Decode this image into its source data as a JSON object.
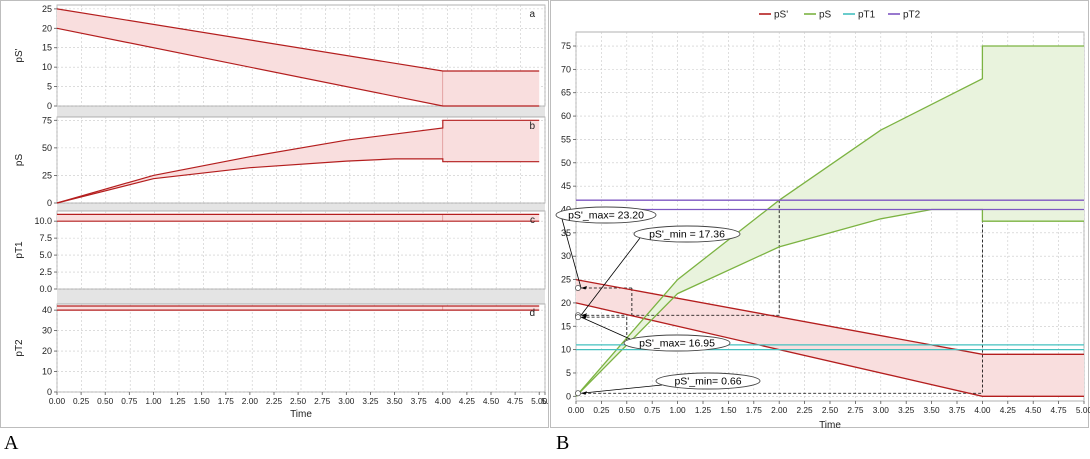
{
  "panel_labels": {
    "a": "A",
    "b": "B"
  },
  "colors": {
    "red": "#b41e1e",
    "pink_fill": "#f9dede",
    "green": "#7cb342",
    "green_fill": "#e9f3dd",
    "cyan": "#45c0bf",
    "purple": "#7e57c2",
    "grid": "#c8c8c8",
    "gap": "#e4e4e4"
  },
  "chart_data": [
    {
      "type": "area",
      "panel": "A",
      "xlabel": "Time",
      "x_ticks": [
        "0.00",
        "0.25",
        "0.50",
        "0.75",
        "1.00",
        "1.25",
        "1.50",
        "1.75",
        "2.00",
        "2.25",
        "2.50",
        "2.75",
        "3.00",
        "3.25",
        "3.50",
        "3.75",
        "4.00",
        "4.25",
        "4.50",
        "4.75",
        "5.00",
        "5."
      ],
      "xlim": [
        0,
        5.06
      ],
      "subplots": [
        {
          "tag": "a",
          "ylabel": "pS'",
          "ylim": [
            0,
            26
          ],
          "y_ticks": [
            0,
            5,
            10,
            15,
            20,
            25
          ],
          "upper": [
            [
              0,
              25
            ],
            [
              4,
              9
            ],
            [
              5,
              9
            ]
          ],
          "lower": [
            [
              0,
              20
            ],
            [
              4,
              0
            ],
            [
              5,
              0
            ]
          ]
        },
        {
          "tag": "b",
          "ylabel": "pS",
          "ylim": [
            0,
            78
          ],
          "y_ticks": [
            0,
            25,
            50,
            75
          ],
          "upper": [
            [
              0,
              0
            ],
            [
              1,
              25
            ],
            [
              2,
              42
            ],
            [
              3,
              57
            ],
            [
              4,
              68
            ],
            [
              4,
              75
            ],
            [
              5,
              75
            ]
          ],
          "lower": [
            [
              0,
              0
            ],
            [
              1,
              22
            ],
            [
              2,
              32
            ],
            [
              3,
              38
            ],
            [
              3.5,
              40
            ],
            [
              4,
              40
            ],
            [
              4,
              37.5
            ],
            [
              5,
              37.5
            ]
          ]
        },
        {
          "tag": "c",
          "ylabel": "pT1",
          "ylim": [
            0,
            11.5
          ],
          "y_ticks": [
            "0.0",
            "2.5",
            "5.0",
            "7.5",
            "10.0"
          ],
          "upper": [
            [
              0,
              11
            ],
            [
              5,
              11
            ]
          ],
          "lower": [
            [
              0,
              10
            ],
            [
              5,
              10
            ]
          ]
        },
        {
          "tag": "d",
          "ylabel": "pT2",
          "ylim": [
            0,
            43
          ],
          "y_ticks": [
            0,
            10,
            20,
            30,
            40
          ],
          "upper": [
            [
              0,
              42
            ],
            [
              5,
              42
            ]
          ],
          "lower": [
            [
              0,
              40
            ],
            [
              5,
              40
            ]
          ]
        }
      ]
    },
    {
      "type": "line",
      "panel": "B",
      "xlabel": "Time",
      "legend": [
        "pS'",
        "pS",
        "pT1",
        "pT2"
      ],
      "legend_position": "top-center",
      "x_ticks": [
        "0.00",
        "0.25",
        "0.50",
        "0.75",
        "1.00",
        "1.25",
        "1.50",
        "1.75",
        "2.00",
        "2.25",
        "2.50",
        "2.75",
        "3.00",
        "3.25",
        "3.50",
        "3.75",
        "4.00",
        "4.25",
        "4.50",
        "4.75",
        "5.00"
      ],
      "y_ticks": [
        0,
        5,
        10,
        15,
        20,
        25,
        30,
        35,
        40,
        45,
        50,
        55,
        60,
        65,
        70,
        75
      ],
      "xlim": [
        0,
        5
      ],
      "ylim": [
        -1,
        78
      ],
      "series": [
        {
          "name": "pS'",
          "upper": [
            [
              0,
              25
            ],
            [
              4,
              9
            ],
            [
              5,
              9
            ]
          ],
          "lower": [
            [
              0,
              20
            ],
            [
              4,
              0
            ],
            [
              5,
              0
            ]
          ]
        },
        {
          "name": "pS",
          "upper": [
            [
              0,
              0
            ],
            [
              1,
              25
            ],
            [
              2,
              42
            ],
            [
              3,
              57
            ],
            [
              4,
              68
            ],
            [
              4,
              75
            ],
            [
              5,
              75
            ]
          ],
          "lower": [
            [
              0,
              0
            ],
            [
              1,
              22
            ],
            [
              2,
              32
            ],
            [
              3,
              38
            ],
            [
              3.5,
              40
            ],
            [
              4,
              40
            ],
            [
              4,
              37.5
            ],
            [
              5,
              37.5
            ]
          ]
        },
        {
          "name": "pT1",
          "upper": [
            [
              0,
              11
            ],
            [
              5,
              11
            ]
          ],
          "lower": [
            [
              0,
              10
            ],
            [
              5,
              10
            ]
          ]
        },
        {
          "name": "pT2",
          "upper": [
            [
              0,
              42
            ],
            [
              5,
              42
            ]
          ],
          "lower": [
            [
              0,
              40
            ],
            [
              5,
              40
            ]
          ]
        }
      ],
      "annotations": [
        "pS'_max= 23.20",
        "pS'_min = 17.36",
        "pS'_max= 16.95",
        "pS'_min= 0.66"
      ],
      "annotation_values": [
        23.2,
        17.36,
        16.95,
        0.66
      ],
      "annotation_times": [
        0.55,
        2.0,
        0.5,
        4.0
      ]
    }
  ]
}
